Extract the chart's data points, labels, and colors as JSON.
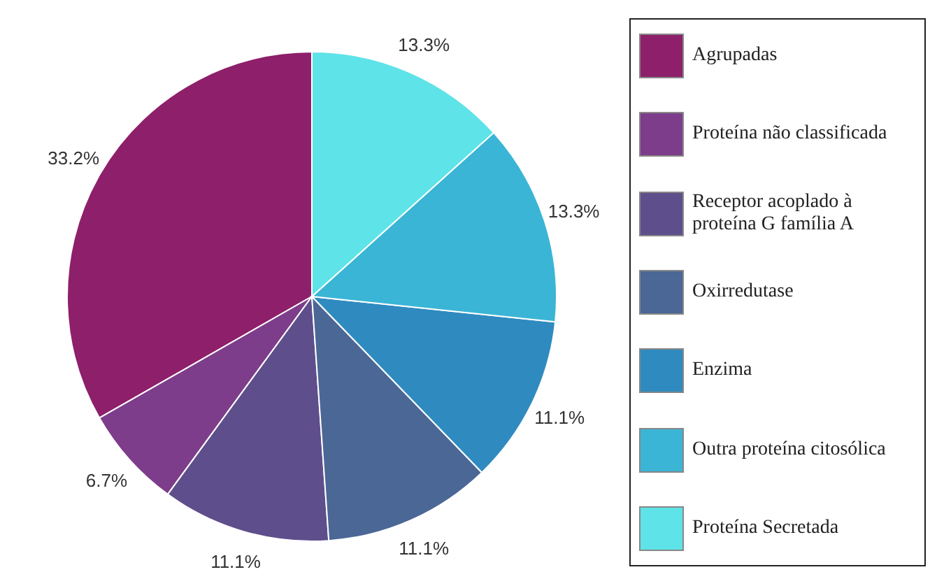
{
  "chart_data": {
    "type": "pie",
    "categories": [
      "Agrupadas",
      "Proteína não classificada",
      "Receptor acoplado à proteína G família A",
      "Oxirredutase",
      "Enzima",
      "Outra proteína citosólica",
      "Proteína Secretada"
    ],
    "values": [
      33.2,
      6.7,
      11.1,
      11.1,
      11.1,
      13.3,
      13.3
    ],
    "colors": [
      "#8e1f6a",
      "#7d3d8a",
      "#5f4e8c",
      "#4a6796",
      "#2f8bbf",
      "#3ab5d6",
      "#5de3e8"
    ],
    "value_labels": [
      "33.2%",
      "6.7%",
      "11.1%",
      "11.1%",
      "11.1%",
      "13.3%",
      "13.3%"
    ],
    "legend": "right"
  }
}
